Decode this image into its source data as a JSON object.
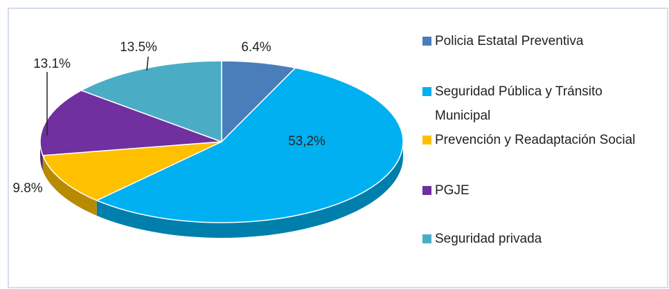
{
  "chart_data": {
    "type": "pie3d",
    "categories": [
      "Policia Estatal Preventiva",
      "Seguridad Pública y Tránsito Municipal",
      "Prevención y Readaptación Social",
      "PGJE",
      "Seguridad privada"
    ],
    "values": [
      6.4,
      53.2,
      9.8,
      13.1,
      13.5
    ],
    "value_labels": [
      "6.4%",
      "53,2%",
      "9.8%",
      "13.1%",
      "13.5%"
    ],
    "colors": [
      "#4a7ebb",
      "#00b0f0",
      "#ffc000",
      "#7030a0",
      "#4bacc6"
    ],
    "legend": "right"
  }
}
